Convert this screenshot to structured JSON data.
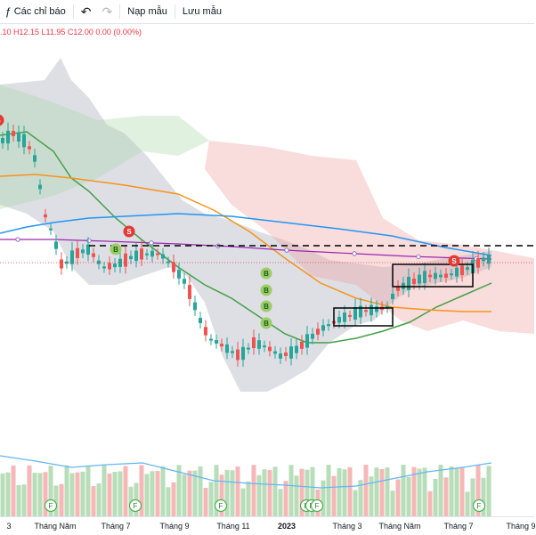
{
  "toolbar": {
    "indicators_label": "Các chỉ báo",
    "templates_label": "Nạp mẫu",
    "save_template_label": "Lưu mẫu"
  },
  "legend": {
    "ohlc_text": ".10  H12.15  L11.95  C12.00  0.00 (0.00%)",
    "color": "#f23645"
  },
  "colors": {
    "up": "#26a69a",
    "down": "#ef5350",
    "ma_fast": "#43a047",
    "ma_mid": "#f7931a",
    "ma_slow": "#2196f3",
    "ma_long": "#9c27b0",
    "bands": "#b2b5be",
    "cloud_up": "#a5d6a7",
    "cloud_down": "#ef9a9a"
  },
  "x_axis": [
    "3",
    "Tháng Năm",
    "Tháng 7",
    "Tháng 9",
    "Tháng 11",
    "2023",
    "Tháng 3",
    "Tháng Năm",
    "Tháng 7",
    "Tháng 9"
  ],
  "markers": {
    "sell": [
      "S",
      "S",
      "S"
    ],
    "buy": [
      "B",
      "B",
      "B",
      "B",
      "B"
    ],
    "financial": [
      "F",
      "F",
      "F",
      "F",
      "F",
      "F",
      "F"
    ]
  },
  "chart_data": {
    "type": "candlestick",
    "current_close": 12.0,
    "volume_panel": true,
    "boxes": 2
  }
}
